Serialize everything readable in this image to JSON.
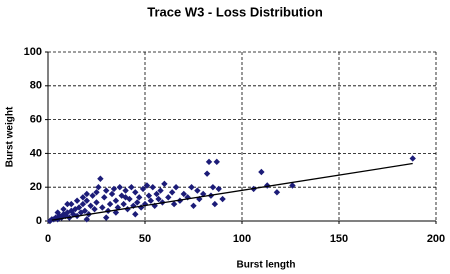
{
  "chart_data": {
    "type": "scatter",
    "title": "Trace W3 - Loss Distribution",
    "x_label": "Burst length",
    "y_label": "Burst weight",
    "xlim": [
      0,
      200
    ],
    "xticks": [
      0,
      50,
      100,
      150,
      200
    ],
    "ylim": [
      0,
      100
    ],
    "yticks": [
      0,
      20,
      40,
      60,
      80,
      100
    ],
    "grid": true,
    "series": [
      {
        "color": "#1c1c78",
        "x": [
          1,
          2,
          3,
          4,
          5,
          6,
          7,
          8,
          9,
          10,
          11,
          12,
          13,
          14,
          15,
          16,
          17,
          18,
          19,
          20,
          21,
          22,
          23,
          24,
          25,
          26,
          27,
          28,
          29,
          30,
          31,
          32,
          33,
          34,
          35,
          36,
          37,
          38,
          39,
          40,
          41,
          42,
          43,
          44,
          45,
          46,
          47,
          48,
          49,
          50,
          51,
          52,
          53,
          54,
          55,
          56,
          57,
          58,
          59,
          60,
          62,
          64,
          65,
          66,
          68,
          70,
          72,
          74,
          75,
          77,
          78,
          80,
          82,
          83,
          84,
          85,
          86,
          87,
          88,
          90,
          106,
          110,
          113,
          118,
          126,
          188,
          5,
          10,
          15,
          20,
          8,
          12,
          18,
          25,
          35,
          45,
          30,
          20,
          40
        ],
        "values": [
          0,
          1,
          1,
          2,
          1,
          3,
          2,
          4,
          3,
          5,
          2,
          6,
          4,
          7,
          3,
          8,
          5,
          10,
          6,
          12,
          4,
          9,
          15,
          7,
          11,
          20,
          25,
          8,
          14,
          18,
          6,
          10,
          16,
          19,
          12,
          8,
          20,
          15,
          10,
          18,
          7,
          13,
          20,
          9,
          17,
          11,
          14,
          8,
          19,
          10,
          21,
          15,
          12,
          20,
          9,
          16,
          13,
          18,
          11,
          22,
          14,
          17,
          10,
          20,
          12,
          16,
          14,
          20,
          9,
          18,
          13,
          16,
          28,
          35,
          15,
          20,
          10,
          35,
          19,
          13,
          19,
          29,
          21,
          17,
          21,
          37,
          5,
          10,
          12,
          16,
          7,
          10,
          14,
          17,
          5,
          4,
          2,
          1,
          14
        ]
      }
    ],
    "trendline": {
      "color": "#000000",
      "x": [
        2,
        188
      ],
      "values": [
        0.5,
        34
      ]
    }
  }
}
